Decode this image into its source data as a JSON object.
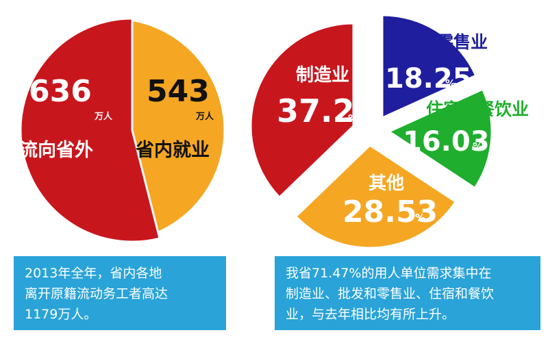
{
  "chart_data": [
    {
      "type": "pie",
      "unit": "万人",
      "slices": [
        {
          "value": "636",
          "unit": "万人",
          "label": "流向省外",
          "color": "#c8161d"
        },
        {
          "value": "543",
          "unit": "万人",
          "label": "省内就业",
          "color": "#f5a623"
        }
      ]
    },
    {
      "type": "pie",
      "unit": "%",
      "slices": [
        {
          "label": "制造业",
          "value": "37.2",
          "unit": "%",
          "color": "#c8161d"
        },
        {
          "label": "批发和零售业",
          "value": "18.25",
          "unit": "%",
          "color": "#1e1e9e"
        },
        {
          "label": "住宿和餐饮业",
          "value": "16.03",
          "unit": "%",
          "color": "#1fae2e"
        },
        {
          "label": "其他",
          "value": "28.53",
          "unit": "%",
          "color": "#f5a623"
        }
      ]
    }
  ],
  "captions": {
    "left": [
      "2013年全年，省内各地",
      "离开原籍流动务工者高达",
      "1179万人。"
    ],
    "right": [
      "我省71.47%的用人单位需求集中在",
      "制造业、批发和零售业、住宿和餐饮",
      "业，与去年相比均有所上升。"
    ]
  }
}
